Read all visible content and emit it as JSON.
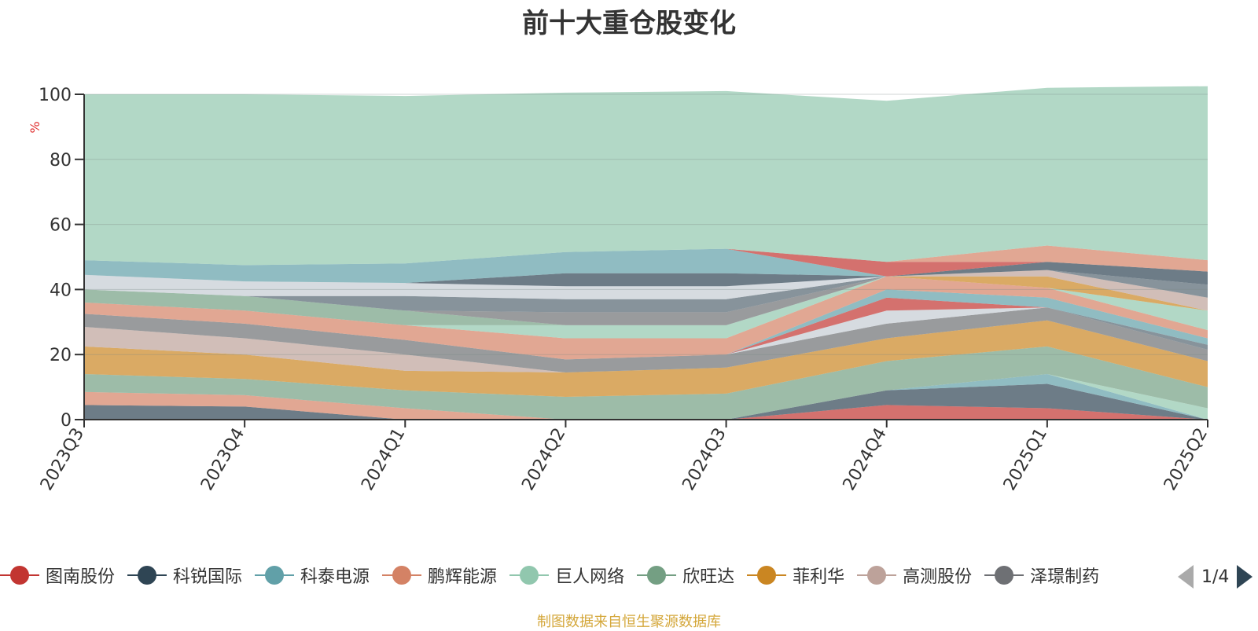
{
  "chart_data": {
    "type": "area",
    "stacked": true,
    "title": "前十大重仓股变化",
    "ylabel": "%",
    "ylim": [
      0,
      100
    ],
    "yticks": [
      0,
      20,
      40,
      60,
      80,
      100
    ],
    "categories": [
      "2023Q3",
      "2023Q4",
      "2024Q1",
      "2024Q2",
      "2024Q3",
      "2024Q4",
      "2025Q1",
      "2025Q2"
    ],
    "grid": true,
    "legend_position": "bottom",
    "series": [
      {
        "name": "图南股份",
        "color": "#c23531",
        "values": [
          0,
          0,
          0,
          0,
          0,
          4.5,
          3.5,
          0
        ]
      },
      {
        "name": "科锐国际",
        "color": "#2f4554",
        "values": [
          4.5,
          4,
          0,
          0,
          0,
          4.5,
          7.5,
          0
        ]
      },
      {
        "name": "科泰电源",
        "color": "#61a0a8",
        "values": [
          0,
          0,
          0,
          0,
          0,
          0,
          3,
          0
        ]
      },
      {
        "name": "鹏辉能源",
        "color": "#d48265",
        "values": [
          4,
          3.5,
          3.5,
          0,
          0,
          0,
          0,
          0
        ]
      },
      {
        "name": "巨人网络",
        "color": "#91c7ae",
        "values": [
          0,
          0,
          0,
          0,
          0,
          0,
          0,
          3.5
        ]
      },
      {
        "name": "欣旺达",
        "color": "#749f83",
        "values": [
          5.5,
          5,
          5.5,
          7,
          8,
          9,
          8.5,
          6.5
        ]
      },
      {
        "name": "菲利华",
        "color": "#ca8622",
        "values": [
          8.5,
          7.5,
          6,
          7.5,
          8,
          7,
          8,
          8
        ]
      },
      {
        "name": "高测股份",
        "color": "#bda29a",
        "values": [
          6,
          5,
          5,
          0,
          0,
          0,
          0,
          0
        ]
      },
      {
        "name": "泽璟制药",
        "color": "#6e7074",
        "values": [
          4,
          4.5,
          4.5,
          4,
          4,
          4.5,
          4,
          3.5
        ]
      },
      {
        "name": "",
        "color": "#546570",
        "values": [
          0,
          0,
          0,
          0,
          0,
          0,
          0,
          1.5
        ]
      },
      {
        "name": "",
        "color": "#c4ccd3",
        "values": [
          0,
          0,
          0,
          0,
          0,
          4,
          0,
          0
        ]
      },
      {
        "name": "",
        "color": "#c23531",
        "values": [
          0,
          0,
          0,
          0,
          0,
          4,
          0,
          0
        ]
      },
      {
        "name": "",
        "color": "#61a0a8",
        "values": [
          0,
          0,
          0,
          0,
          0,
          2.5,
          3,
          2
        ]
      },
      {
        "name": "",
        "color": "#d48265",
        "values": [
          3.5,
          4,
          4.5,
          6.5,
          5,
          4,
          3,
          2.5
        ]
      },
      {
        "name": "",
        "color": "#91c7ae",
        "values": [
          0,
          0,
          0,
          4,
          4,
          0,
          0,
          6
        ]
      },
      {
        "name": "",
        "color": "#749f83",
        "values": [
          4,
          4.5,
          4.5,
          0,
          0,
          0,
          0,
          0
        ]
      },
      {
        "name": "",
        "color": "#ca8622",
        "values": [
          0,
          0,
          0,
          0,
          0,
          0,
          3.5,
          0
        ]
      },
      {
        "name": "",
        "color": "#bda29a",
        "values": [
          0,
          0,
          0,
          0,
          0,
          0,
          2,
          4
        ]
      },
      {
        "name": "",
        "color": "#6e7074",
        "values": [
          0,
          0,
          0,
          4,
          4,
          0,
          0,
          0
        ]
      },
      {
        "name": "",
        "color": "#546570",
        "values": [
          0,
          0,
          4.5,
          4,
          4,
          0,
          0,
          4
        ]
      },
      {
        "name": "",
        "color": "#c4ccd3",
        "values": [
          4.5,
          4.5,
          4,
          4,
          4,
          0,
          0,
          0
        ]
      },
      {
        "name": "",
        "color": "#2f4554",
        "values": [
          0,
          0,
          0,
          4,
          4,
          0,
          2.5,
          4
        ]
      },
      {
        "name": "",
        "color": "#61a0a8",
        "values": [
          4.5,
          5,
          6,
          6.5,
          7.5,
          0,
          0,
          0
        ]
      },
      {
        "name": "",
        "color": "#c23531",
        "values": [
          0,
          0,
          0,
          0,
          0,
          4.5,
          0,
          0
        ]
      },
      {
        "name": "",
        "color": "#d48265",
        "values": [
          0,
          0,
          0,
          0,
          0,
          0,
          5,
          3.5
        ]
      },
      {
        "name": "",
        "color": "#91c7ae",
        "values": [
          51,
          52.5,
          51.5,
          49,
          48.5,
          49.5,
          48.5,
          53.5
        ]
      }
    ]
  },
  "legend": {
    "items": [
      {
        "name": "图南股份",
        "color": "#c23531"
      },
      {
        "name": "科锐国际",
        "color": "#2f4554"
      },
      {
        "name": "科泰电源",
        "color": "#61a0a8"
      },
      {
        "name": "鹏辉能源",
        "color": "#d48265"
      },
      {
        "name": "巨人网络",
        "color": "#91c7ae"
      },
      {
        "name": "欣旺达",
        "color": "#749f83"
      },
      {
        "name": "菲利华",
        "color": "#ca8622"
      },
      {
        "name": "高测股份",
        "color": "#bda29a"
      },
      {
        "name": "泽璟制药",
        "color": "#6e7074"
      }
    ],
    "page_indicator": "1/4"
  },
  "source_note": "制图数据来自恒生聚源数据库"
}
